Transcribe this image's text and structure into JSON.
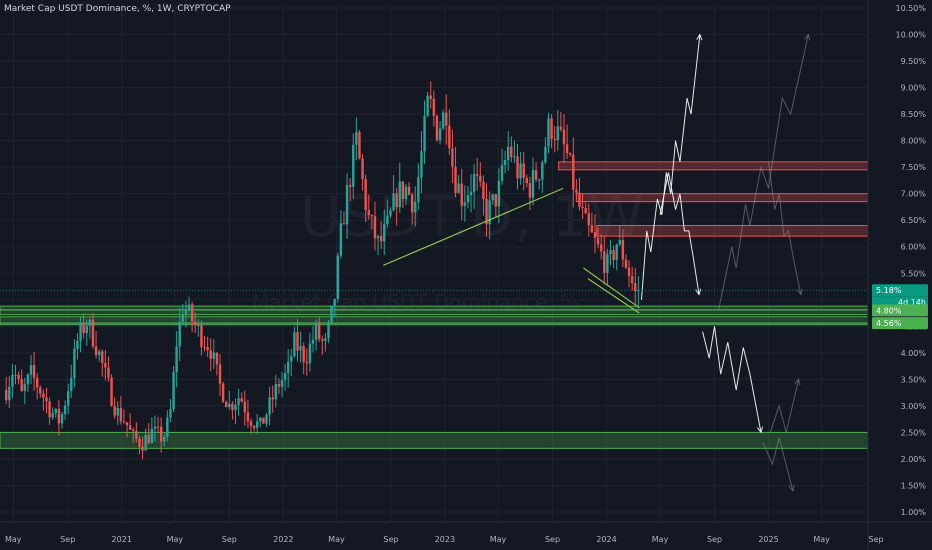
{
  "chart_header": {
    "title": "Market Cap USDT Dominance, %, 1W, CRYPTOCAP"
  },
  "watermark": {
    "symbol": "USDT.D, 1W",
    "description": "Market Cap USDT Dominance, %"
  },
  "colors": {
    "background": "#141823",
    "up_candle": "#26a69a",
    "down_candle": "#ef5350",
    "support_zone": "#4caf50",
    "resistance_zone": "#ef5350",
    "trendline": "#8bc34a",
    "projection_bright": "#ffffff",
    "projection_faded": "#8c8f99",
    "badge_price": "#089981",
    "badge_level": "#4caf50"
  },
  "chart_data": {
    "type": "candlestick",
    "title": "Market Cap USDT Dominance, %, 1W, CRYPTOCAP",
    "ylim": [
      1.0,
      10.5
    ],
    "y_ticks": [
      "1.00%",
      "1.50%",
      "2.00%",
      "2.50%",
      "3.00%",
      "3.50%",
      "4.00%",
      "4.50%",
      "5.00%",
      "5.50%",
      "6.00%",
      "6.50%",
      "7.00%",
      "7.50%",
      "8.00%",
      "8.50%",
      "9.00%",
      "9.50%",
      "10.00%",
      "10.50%"
    ],
    "y_tick_values": [
      1.0,
      1.5,
      2.0,
      2.5,
      3.0,
      3.5,
      4.0,
      4.5,
      5.0,
      5.5,
      6.0,
      6.5,
      7.0,
      7.5,
      8.0,
      8.5,
      9.0,
      9.5,
      10.0,
      10.5
    ],
    "x_ticks": [
      "May",
      "Sep",
      "2021",
      "May",
      "Sep",
      "2022",
      "May",
      "Sep",
      "2023",
      "May",
      "Sep",
      "2024",
      "May",
      "Sep",
      "2025",
      "May",
      "Sep"
    ],
    "x_tick_dates": [
      "2020-05-01",
      "2020-09-01",
      "2021-01-01",
      "2021-05-01",
      "2021-09-01",
      "2022-01-01",
      "2022-05-01",
      "2022-09-01",
      "2023-01-01",
      "2023-05-01",
      "2023-09-01",
      "2024-01-01",
      "2024-05-01",
      "2024-09-01",
      "2025-01-01",
      "2025-05-01",
      "2025-09-01"
    ],
    "price_path": [
      [
        "2020-04-15",
        3.3
      ],
      [
        "2020-05-01",
        3.7
      ],
      [
        "2020-05-20",
        3.2
      ],
      [
        "2020-06-10",
        3.6
      ],
      [
        "2020-07-01",
        3.3
      ],
      [
        "2020-07-25",
        2.9
      ],
      [
        "2020-08-15",
        2.7
      ],
      [
        "2020-09-01",
        3.3
      ],
      [
        "2020-09-25",
        4.3
      ],
      [
        "2020-10-15",
        4.6
      ],
      [
        "2020-11-10",
        4.0
      ],
      [
        "2020-12-01",
        3.4
      ],
      [
        "2020-12-20",
        2.9
      ],
      [
        "2021-01-10",
        2.7
      ],
      [
        "2021-01-25",
        2.4
      ],
      [
        "2021-02-15",
        2.3
      ],
      [
        "2021-03-10",
        2.5
      ],
      [
        "2021-04-05",
        2.4
      ],
      [
        "2021-04-20",
        2.8
      ],
      [
        "2021-05-05",
        4.2
      ],
      [
        "2021-05-20",
        4.9
      ],
      [
        "2021-06-10",
        4.6
      ],
      [
        "2021-07-01",
        4.3
      ],
      [
        "2021-07-20",
        4.1
      ],
      [
        "2021-08-10",
        3.4
      ],
      [
        "2021-09-01",
        3.0
      ],
      [
        "2021-09-25",
        3.2
      ],
      [
        "2021-10-15",
        2.8
      ],
      [
        "2021-11-10",
        2.6
      ],
      [
        "2021-12-01",
        3.0
      ],
      [
        "2021-12-20",
        3.4
      ],
      [
        "2022-01-10",
        3.6
      ],
      [
        "2022-01-25",
        4.2
      ],
      [
        "2022-02-20",
        3.9
      ],
      [
        "2022-03-15",
        4.4
      ],
      [
        "2022-04-05",
        4.1
      ],
      [
        "2022-04-25",
        4.9
      ],
      [
        "2022-05-12",
        6.3
      ],
      [
        "2022-05-25",
        7.0
      ],
      [
        "2022-06-15",
        8.0
      ],
      [
        "2022-07-10",
        6.6
      ],
      [
        "2022-08-05",
        6.0
      ],
      [
        "2022-08-25",
        6.4
      ],
      [
        "2022-09-15",
        7.0
      ],
      [
        "2022-10-05",
        7.1
      ],
      [
        "2022-10-25",
        6.8
      ],
      [
        "2022-11-10",
        7.8
      ],
      [
        "2022-11-25",
        8.8
      ],
      [
        "2022-12-15",
        8.2
      ],
      [
        "2023-01-05",
        8.6
      ],
      [
        "2023-01-20",
        7.4
      ],
      [
        "2023-02-10",
        6.9
      ],
      [
        "2023-03-10",
        7.3
      ],
      [
        "2023-04-05",
        6.6
      ],
      [
        "2023-05-01",
        7.0
      ],
      [
        "2023-05-25",
        7.9
      ],
      [
        "2023-06-15",
        7.4
      ],
      [
        "2023-07-10",
        7.1
      ],
      [
        "2023-08-05",
        7.5
      ],
      [
        "2023-08-25",
        8.3
      ],
      [
        "2023-09-15",
        8.1
      ],
      [
        "2023-10-05",
        7.7
      ],
      [
        "2023-10-25",
        6.9
      ],
      [
        "2023-11-15",
        6.4
      ],
      [
        "2023-12-10",
        6.0
      ],
      [
        "2024-01-05",
        5.6
      ],
      [
        "2024-01-25",
        6.1
      ],
      [
        "2024-02-10",
        5.8
      ],
      [
        "2024-02-25",
        5.4
      ],
      [
        "2024-03-08",
        5.05
      ],
      [
        "2024-03-15",
        5.18
      ]
    ],
    "last_price": "5.18%",
    "countdown": "4d 14h",
    "support_zones": [
      {
        "label": "4.80%",
        "low": 4.72,
        "high": 4.88
      },
      {
        "label": "4.56%",
        "low": 4.53,
        "high": 4.68
      },
      {
        "from": "2020-04-01",
        "low": 2.2,
        "high": 2.5
      }
    ],
    "support_lines": [
      4.81,
      4.56
    ],
    "resistance_zones": [
      {
        "from": "2023-09-15",
        "low": 7.45,
        "high": 7.6
      },
      {
        "from": "2023-10-25",
        "low": 6.85,
        "high": 7.0
      },
      {
        "from": "2023-12-10",
        "low": 6.2,
        "high": 6.4
      }
    ],
    "trendlines": [
      {
        "points": [
          [
            "2022-08-15",
            5.65
          ],
          [
            "2023-09-25",
            7.1
          ]
        ]
      },
      {
        "points": [
          [
            "2023-11-10",
            5.6
          ],
          [
            "2024-03-15",
            4.85
          ]
        ]
      },
      {
        "points": [
          [
            "2023-11-20",
            5.4
          ],
          [
            "2024-03-15",
            4.75
          ]
        ]
      }
    ],
    "projection_paths": [
      {
        "style": "bright",
        "points": [
          [
            "2024-03-20",
            5.0
          ],
          [
            "2024-04-01",
            6.3
          ],
          [
            "2024-04-10",
            5.9
          ],
          [
            "2024-04-25",
            6.9
          ],
          [
            "2024-05-05",
            6.6
          ],
          [
            "2024-05-15",
            7.4
          ],
          [
            "2024-05-25",
            7.0
          ],
          [
            "2024-06-05",
            8.0
          ],
          [
            "2024-06-15",
            7.6
          ],
          [
            "2024-07-01",
            8.8
          ],
          [
            "2024-07-10",
            8.5
          ],
          [
            "2024-07-30",
            10.0
          ]
        ]
      },
      {
        "style": "bright",
        "points": [
          [
            "2024-05-01",
            6.6
          ],
          [
            "2024-05-20",
            7.4
          ],
          [
            "2024-06-05",
            6.7
          ],
          [
            "2024-06-15",
            7.0
          ],
          [
            "2024-06-25",
            6.3
          ],
          [
            "2024-07-05",
            6.3
          ],
          [
            "2024-07-15",
            5.8
          ],
          [
            "2024-07-28",
            5.1
          ]
        ]
      },
      {
        "style": "bright",
        "points": [
          [
            "2024-08-05",
            4.4
          ],
          [
            "2024-08-20",
            3.9
          ],
          [
            "2024-09-01",
            4.5
          ],
          [
            "2024-09-15",
            3.6
          ],
          [
            "2024-10-01",
            4.2
          ],
          [
            "2024-10-20",
            3.3
          ],
          [
            "2024-11-05",
            4.1
          ],
          [
            "2024-11-20",
            3.6
          ],
          [
            "2024-12-15",
            2.5
          ]
        ]
      },
      {
        "style": "faded",
        "points": [
          [
            "2024-09-10",
            4.8
          ],
          [
            "2024-10-10",
            6.0
          ],
          [
            "2024-10-20",
            5.6
          ],
          [
            "2024-11-10",
            6.8
          ],
          [
            "2024-11-20",
            6.4
          ],
          [
            "2024-12-15",
            7.5
          ],
          [
            "2025-01-01",
            7.1
          ],
          [
            "2025-02-01",
            8.8
          ],
          [
            "2025-02-20",
            8.5
          ],
          [
            "2025-04-01",
            10.0
          ]
        ]
      },
      {
        "style": "faded",
        "points": [
          [
            "2025-01-01",
            7.6
          ],
          [
            "2025-01-15",
            6.7
          ],
          [
            "2025-01-25",
            7.0
          ],
          [
            "2025-02-05",
            6.2
          ],
          [
            "2025-02-15",
            6.3
          ],
          [
            "2025-02-28",
            5.7
          ],
          [
            "2025-03-15",
            5.1
          ]
        ]
      },
      {
        "style": "faded",
        "points": [
          [
            "2025-01-05",
            2.5
          ],
          [
            "2025-01-25",
            3.0
          ],
          [
            "2025-02-10",
            2.5
          ],
          [
            "2025-03-10",
            3.5
          ]
        ]
      },
      {
        "style": "faded",
        "points": [
          [
            "2024-12-20",
            2.3
          ],
          [
            "2025-01-10",
            1.9
          ],
          [
            "2025-01-25",
            2.4
          ],
          [
            "2025-02-25",
            1.4
          ]
        ]
      }
    ],
    "grid": true,
    "legend": "none"
  }
}
